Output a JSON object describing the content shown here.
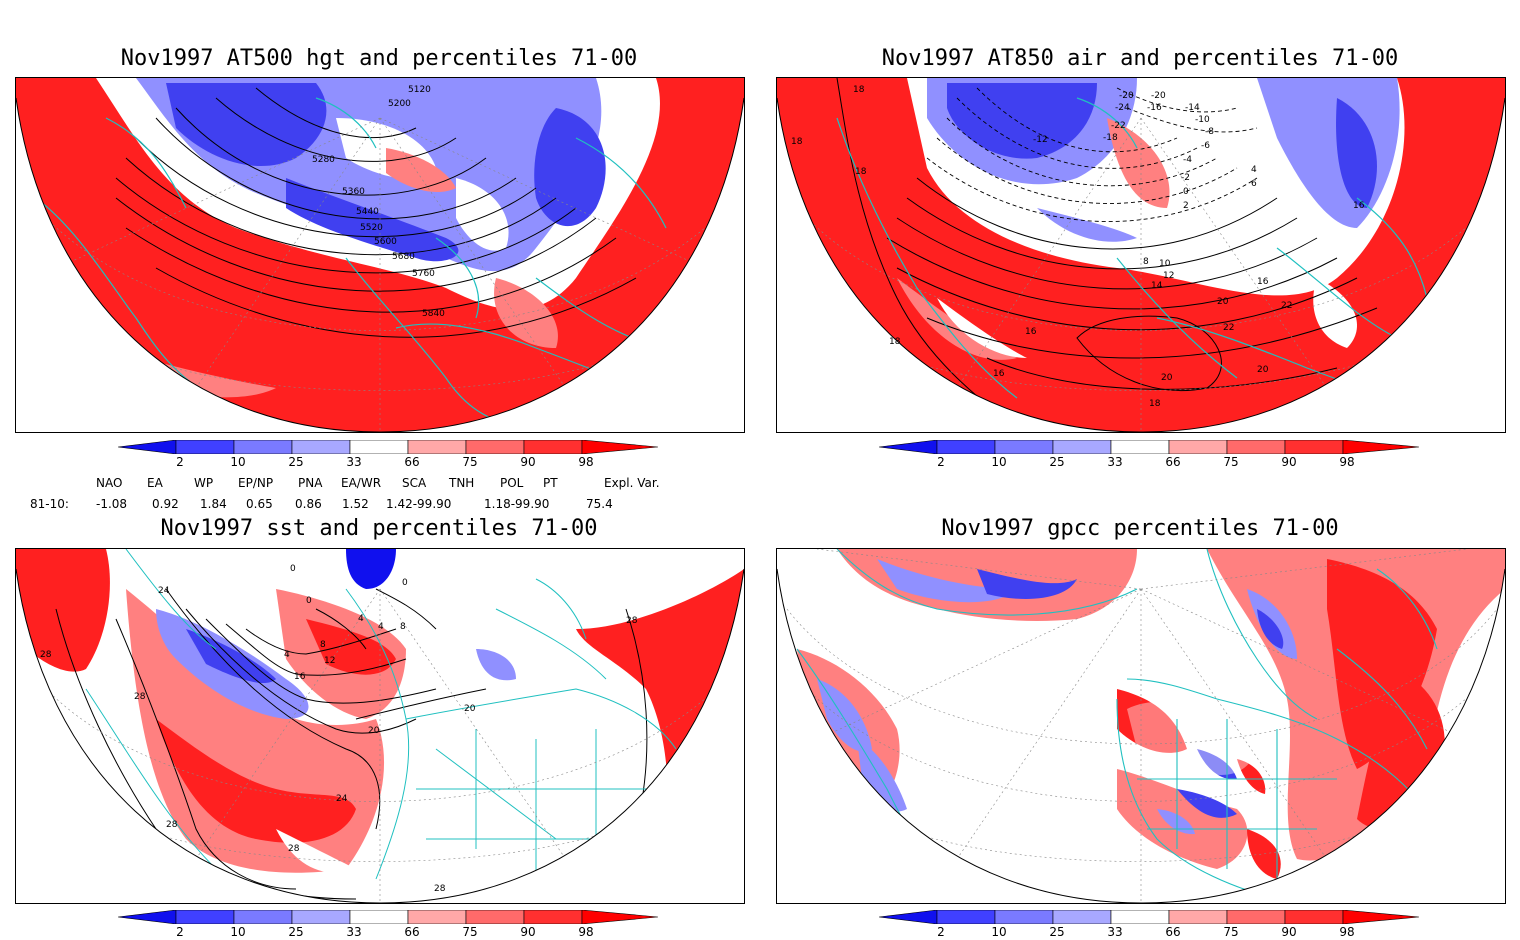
{
  "panels": [
    {
      "id": "hgt500",
      "title": "Nov1997 AT500 hgt and percentiles 71-00",
      "contour_labels": [
        "5120",
        "5200",
        "5280",
        "5360",
        "5440",
        "5520",
        "5600",
        "5680",
        "5760",
        "5840"
      ]
    },
    {
      "id": "air850",
      "title": "Nov1997 AT850 air and percentiles 71-00",
      "contour_labels": [
        "-20",
        "-20",
        "-24",
        "-22",
        "-18",
        "-16",
        "-14",
        "-12",
        "-10",
        "-8",
        "-6",
        "-4",
        "-2",
        "0",
        "2",
        "4",
        "6",
        "8",
        "10",
        "12",
        "14",
        "16",
        "16",
        "16",
        "16",
        "18",
        "18",
        "18",
        "18",
        "18",
        "20",
        "20",
        "20",
        "22",
        "22"
      ]
    },
    {
      "id": "sst",
      "title": "Nov1997 sst and percentiles 71-00",
      "contour_labels": [
        "0",
        "0",
        "0",
        "4",
        "4",
        "4",
        "8",
        "8",
        "12",
        "16",
        "20",
        "20",
        "24",
        "24",
        "28",
        "28",
        "28",
        "28",
        "28",
        "28"
      ]
    },
    {
      "id": "gpcc",
      "title": "Nov1997 gpcc percentiles 71-00",
      "contour_labels": []
    }
  ],
  "colorbar": {
    "labels": [
      "2",
      "10",
      "25",
      "33",
      "66",
      "75",
      "90",
      "98"
    ],
    "colors": {
      "b1": "#1010ee",
      "b2": "#4040ff",
      "b3": "#7a7aff",
      "b4": "#a8a8ff",
      "w": "#ffffff",
      "r1": "#ffa8a8",
      "r2": "#ff6a6a",
      "r3": "#ff3030",
      "r4": "#ff0000"
    }
  },
  "indices": {
    "row_label": "81-10:",
    "headers": [
      "NAO",
      "EA",
      "WP",
      "EP/NP",
      "PNA",
      "EA/WR",
      "SCA",
      "TNH",
      "POL",
      "PT",
      "Expl. Var."
    ],
    "values": [
      "-1.08",
      "0.92",
      "1.84",
      "0.65",
      "0.86",
      "1.52",
      "1.42-99.90",
      "1.18-99.90",
      "75.4"
    ]
  },
  "map_colors": {
    "coast": "#20c0c0",
    "contour": "#000000",
    "red": "#ff2020",
    "pink": "#ff8080",
    "blue": "#4040f0",
    "lightblue": "#9090ff"
  }
}
